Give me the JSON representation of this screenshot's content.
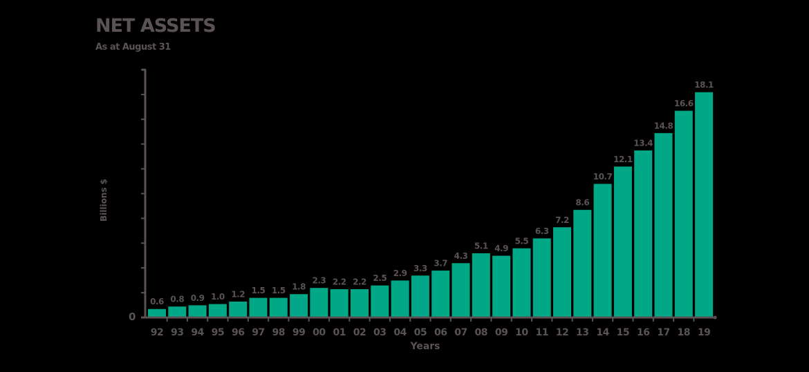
{
  "chart_data": {
    "type": "bar",
    "title": "NET ASSETS",
    "subtitle": "As at August 31",
    "xlabel": "Years",
    "ylabel": "Billions $",
    "categories": [
      "92",
      "93",
      "94",
      "95",
      "96",
      "97",
      "98",
      "99",
      "00",
      "01",
      "02",
      "03",
      "04",
      "05",
      "06",
      "07",
      "08",
      "09",
      "10",
      "11",
      "12",
      "13",
      "14",
      "15",
      "16",
      "17",
      "18",
      "19"
    ],
    "values": [
      0.6,
      0.8,
      0.9,
      1.0,
      1.2,
      1.5,
      1.5,
      1.8,
      2.3,
      2.2,
      2.2,
      2.5,
      2.9,
      3.3,
      3.7,
      4.3,
      5.1,
      4.9,
      5.5,
      6.3,
      7.2,
      8.6,
      10.7,
      12.1,
      13.4,
      14.8,
      16.6,
      18.1
    ],
    "value_labels": [
      "0.6",
      "0.8",
      "0.9",
      "1.0",
      "1.2",
      "1.5",
      "1.5",
      "1.8",
      "2.3",
      "2.2",
      "2.2",
      "2.5",
      "2.9",
      "3.3",
      "3.7",
      "4.3",
      "5.1",
      "4.9",
      "5.5",
      "6.3",
      "7.2",
      "8.6",
      "10.7",
      "12.1",
      "13.4",
      "14.8",
      "16.6",
      "18.1"
    ],
    "ylim": [
      0,
      20
    ],
    "y_tick_step": 2,
    "y_visible_tick_label": "0",
    "grid": false,
    "legend": null,
    "colors": {
      "bar": "#00a887",
      "text": "#5a5254",
      "axis": "#5a5254",
      "background": "#000000"
    }
  }
}
